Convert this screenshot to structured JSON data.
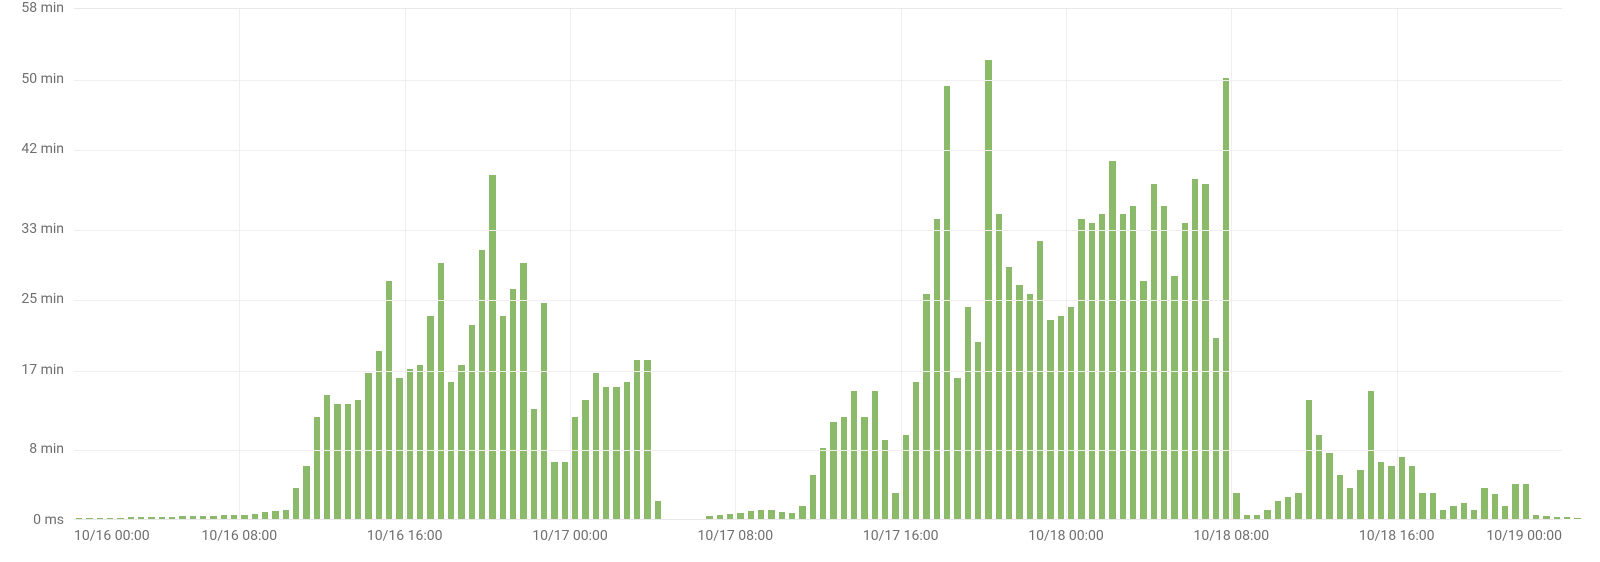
{
  "chart": {
    "type": "bar",
    "background_color": "#ffffff",
    "grid_color": "#efefef",
    "axis_label_color": "#6e6e6e",
    "axis_label_fontsize": 14,
    "bar_color": "#8bbb6a",
    "bar_width_ratio": 0.62,
    "y": {
      "min": 0,
      "max": 58,
      "ticks": [
        {
          "value": 0,
          "label": "0 ms"
        },
        {
          "value": 8,
          "label": "8 min"
        },
        {
          "value": 17,
          "label": "17 min"
        },
        {
          "value": 25,
          "label": "25 min"
        },
        {
          "value": 33,
          "label": "33 min"
        },
        {
          "value": 42,
          "label": "42 min"
        },
        {
          "value": 50,
          "label": "50 min"
        },
        {
          "value": 58,
          "label": "58 min"
        }
      ]
    },
    "x": {
      "n_slots": 144,
      "ticks": [
        {
          "slot": 0,
          "label": "10/16 00:00",
          "align": "first"
        },
        {
          "slot": 16,
          "label": "10/16 08:00"
        },
        {
          "slot": 32,
          "label": "10/16 16:00"
        },
        {
          "slot": 48,
          "label": "10/17 00:00"
        },
        {
          "slot": 64,
          "label": "10/17 08:00"
        },
        {
          "slot": 80,
          "label": "10/17 16:00"
        },
        {
          "slot": 96,
          "label": "10/18 00:00"
        },
        {
          "slot": 112,
          "label": "10/18 08:00"
        },
        {
          "slot": 128,
          "label": "10/18 16:00"
        },
        {
          "slot": 144,
          "label": "10/19 00:00",
          "align": "last"
        }
      ],
      "vgrid_every": 16
    },
    "values": [
      0.1,
      0.1,
      0.1,
      0.1,
      0.1,
      0.2,
      0.2,
      0.2,
      0.2,
      0.2,
      0.3,
      0.3,
      0.3,
      0.3,
      0.4,
      0.4,
      0.5,
      0.6,
      0.8,
      0.9,
      1.0,
      3.5,
      6.0,
      11.5,
      14.0,
      13.0,
      13.0,
      13.5,
      16.5,
      19.0,
      27.0,
      16.0,
      17.0,
      17.5,
      23.0,
      29.0,
      15.5,
      17.5,
      22.0,
      30.5,
      39.0,
      23.0,
      26.0,
      29.0,
      12.5,
      24.5,
      6.5,
      6.5,
      11.5,
      13.5,
      16.5,
      15.0,
      15.0,
      15.5,
      18.0,
      18.0,
      2.0,
      0.0,
      0.0,
      0.0,
      0.0,
      0.3,
      0.5,
      0.6,
      0.7,
      0.9,
      1.0,
      1.0,
      0.8,
      0.7,
      1.5,
      5.0,
      8.0,
      11.0,
      11.5,
      14.5,
      11.5,
      14.5,
      9.0,
      3.0,
      9.5,
      15.5,
      25.5,
      34.0,
      49.0,
      16.0,
      24.0,
      20.0,
      52.0,
      34.5,
      28.5,
      26.5,
      25.5,
      31.5,
      22.5,
      23.0,
      24.0,
      34.0,
      33.5,
      34.5,
      40.5,
      34.5,
      35.5,
      27.0,
      38.0,
      35.5,
      27.5,
      33.5,
      38.5,
      38.0,
      20.5,
      50.0,
      3.0,
      0.5,
      0.5,
      1.0,
      2.0,
      2.5,
      3.0,
      13.5,
      9.5,
      7.5,
      5.0,
      3.5,
      5.5,
      14.5,
      6.5,
      6.0,
      7.0,
      6.0,
      3.0,
      3.0,
      1.0,
      1.5,
      1.8,
      1.0,
      3.5,
      2.8,
      1.5,
      4.0,
      4.0,
      0.5,
      0.3,
      0.2,
      0.2,
      0.1
    ]
  }
}
